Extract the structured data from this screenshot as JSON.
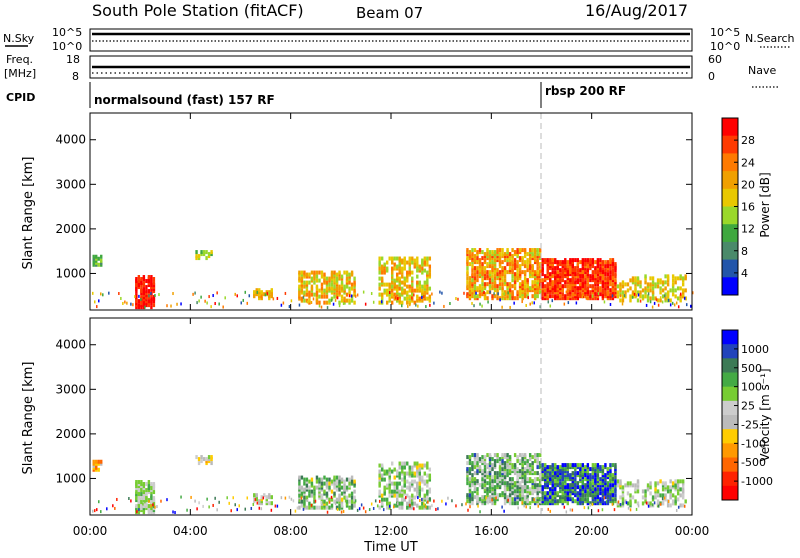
{
  "header": {
    "title": "South Pole Station (fitACF)",
    "beam": "Beam 07",
    "date": "16/Aug/2017"
  },
  "top_panels": {
    "nsky_label": "N.Sky",
    "nsky_ticks": [
      "10^5",
      "10^0"
    ],
    "nsearch_label": "N.Search",
    "nsearch_ticks": [
      "10^5",
      "10^0"
    ],
    "freq_label_1": "Freq.",
    "freq_label_2": "[MHz]",
    "freq_ticks": [
      "18",
      "8"
    ],
    "nave_label": "Nave",
    "nave_ticks": [
      "60",
      "0"
    ],
    "cpid_label": "CPID",
    "cpid_segments": [
      {
        "label": "normalsound (fast) 157 RF",
        "start_hour": 0
      },
      {
        "label": "rbsp 200 RF",
        "start_hour": 18
      }
    ]
  },
  "chart_data": [
    {
      "type": "heatmap",
      "name": "Power",
      "ylabel": "Slant Range [km]",
      "xlabel": "",
      "ylim": [
        180,
        4600
      ],
      "yticks": [
        1000,
        2000,
        3000,
        4000
      ],
      "xlim_hours": [
        0,
        24
      ],
      "colorbar_label": "Power [dB]",
      "colorbar_ticks": [
        "28",
        "24",
        "20",
        "16",
        "12",
        "8",
        "4"
      ],
      "colorbar_colors": [
        "#ff0000",
        "#ff3a00",
        "#ff7a00",
        "#f0a000",
        "#e8c800",
        "#9ad82a",
        "#3fa83f",
        "#4a8a6a",
        "#2255aa",
        "#0000ff"
      ],
      "vertical_marker_hour": 18
    },
    {
      "type": "heatmap",
      "name": "Velocity",
      "ylabel": "Slant Range [km]",
      "xlabel": "Time UT",
      "ylim": [
        180,
        4600
      ],
      "yticks": [
        1000,
        2000,
        3000,
        4000
      ],
      "xlim_hours": [
        0,
        24
      ],
      "xticks": [
        "00:00",
        "04:00",
        "08:00",
        "12:00",
        "16:00",
        "20:00",
        "00:00"
      ],
      "colorbar_label": "Velocity [m s⁻¹]",
      "colorbar_ticks": [
        "1000",
        "500",
        "100",
        "25",
        "-25",
        "-100",
        "-500",
        "-1000"
      ],
      "colorbar_colors": [
        "#0000ff",
        "#2244bb",
        "#3c7a55",
        "#44aa44",
        "#77cc33",
        "#cccccc",
        "#bbbbbb",
        "#ffcc00",
        "#ff9900",
        "#ff6600",
        "#ff2200",
        "#ff0000"
      ],
      "vertical_marker_hour": 18
    }
  ]
}
